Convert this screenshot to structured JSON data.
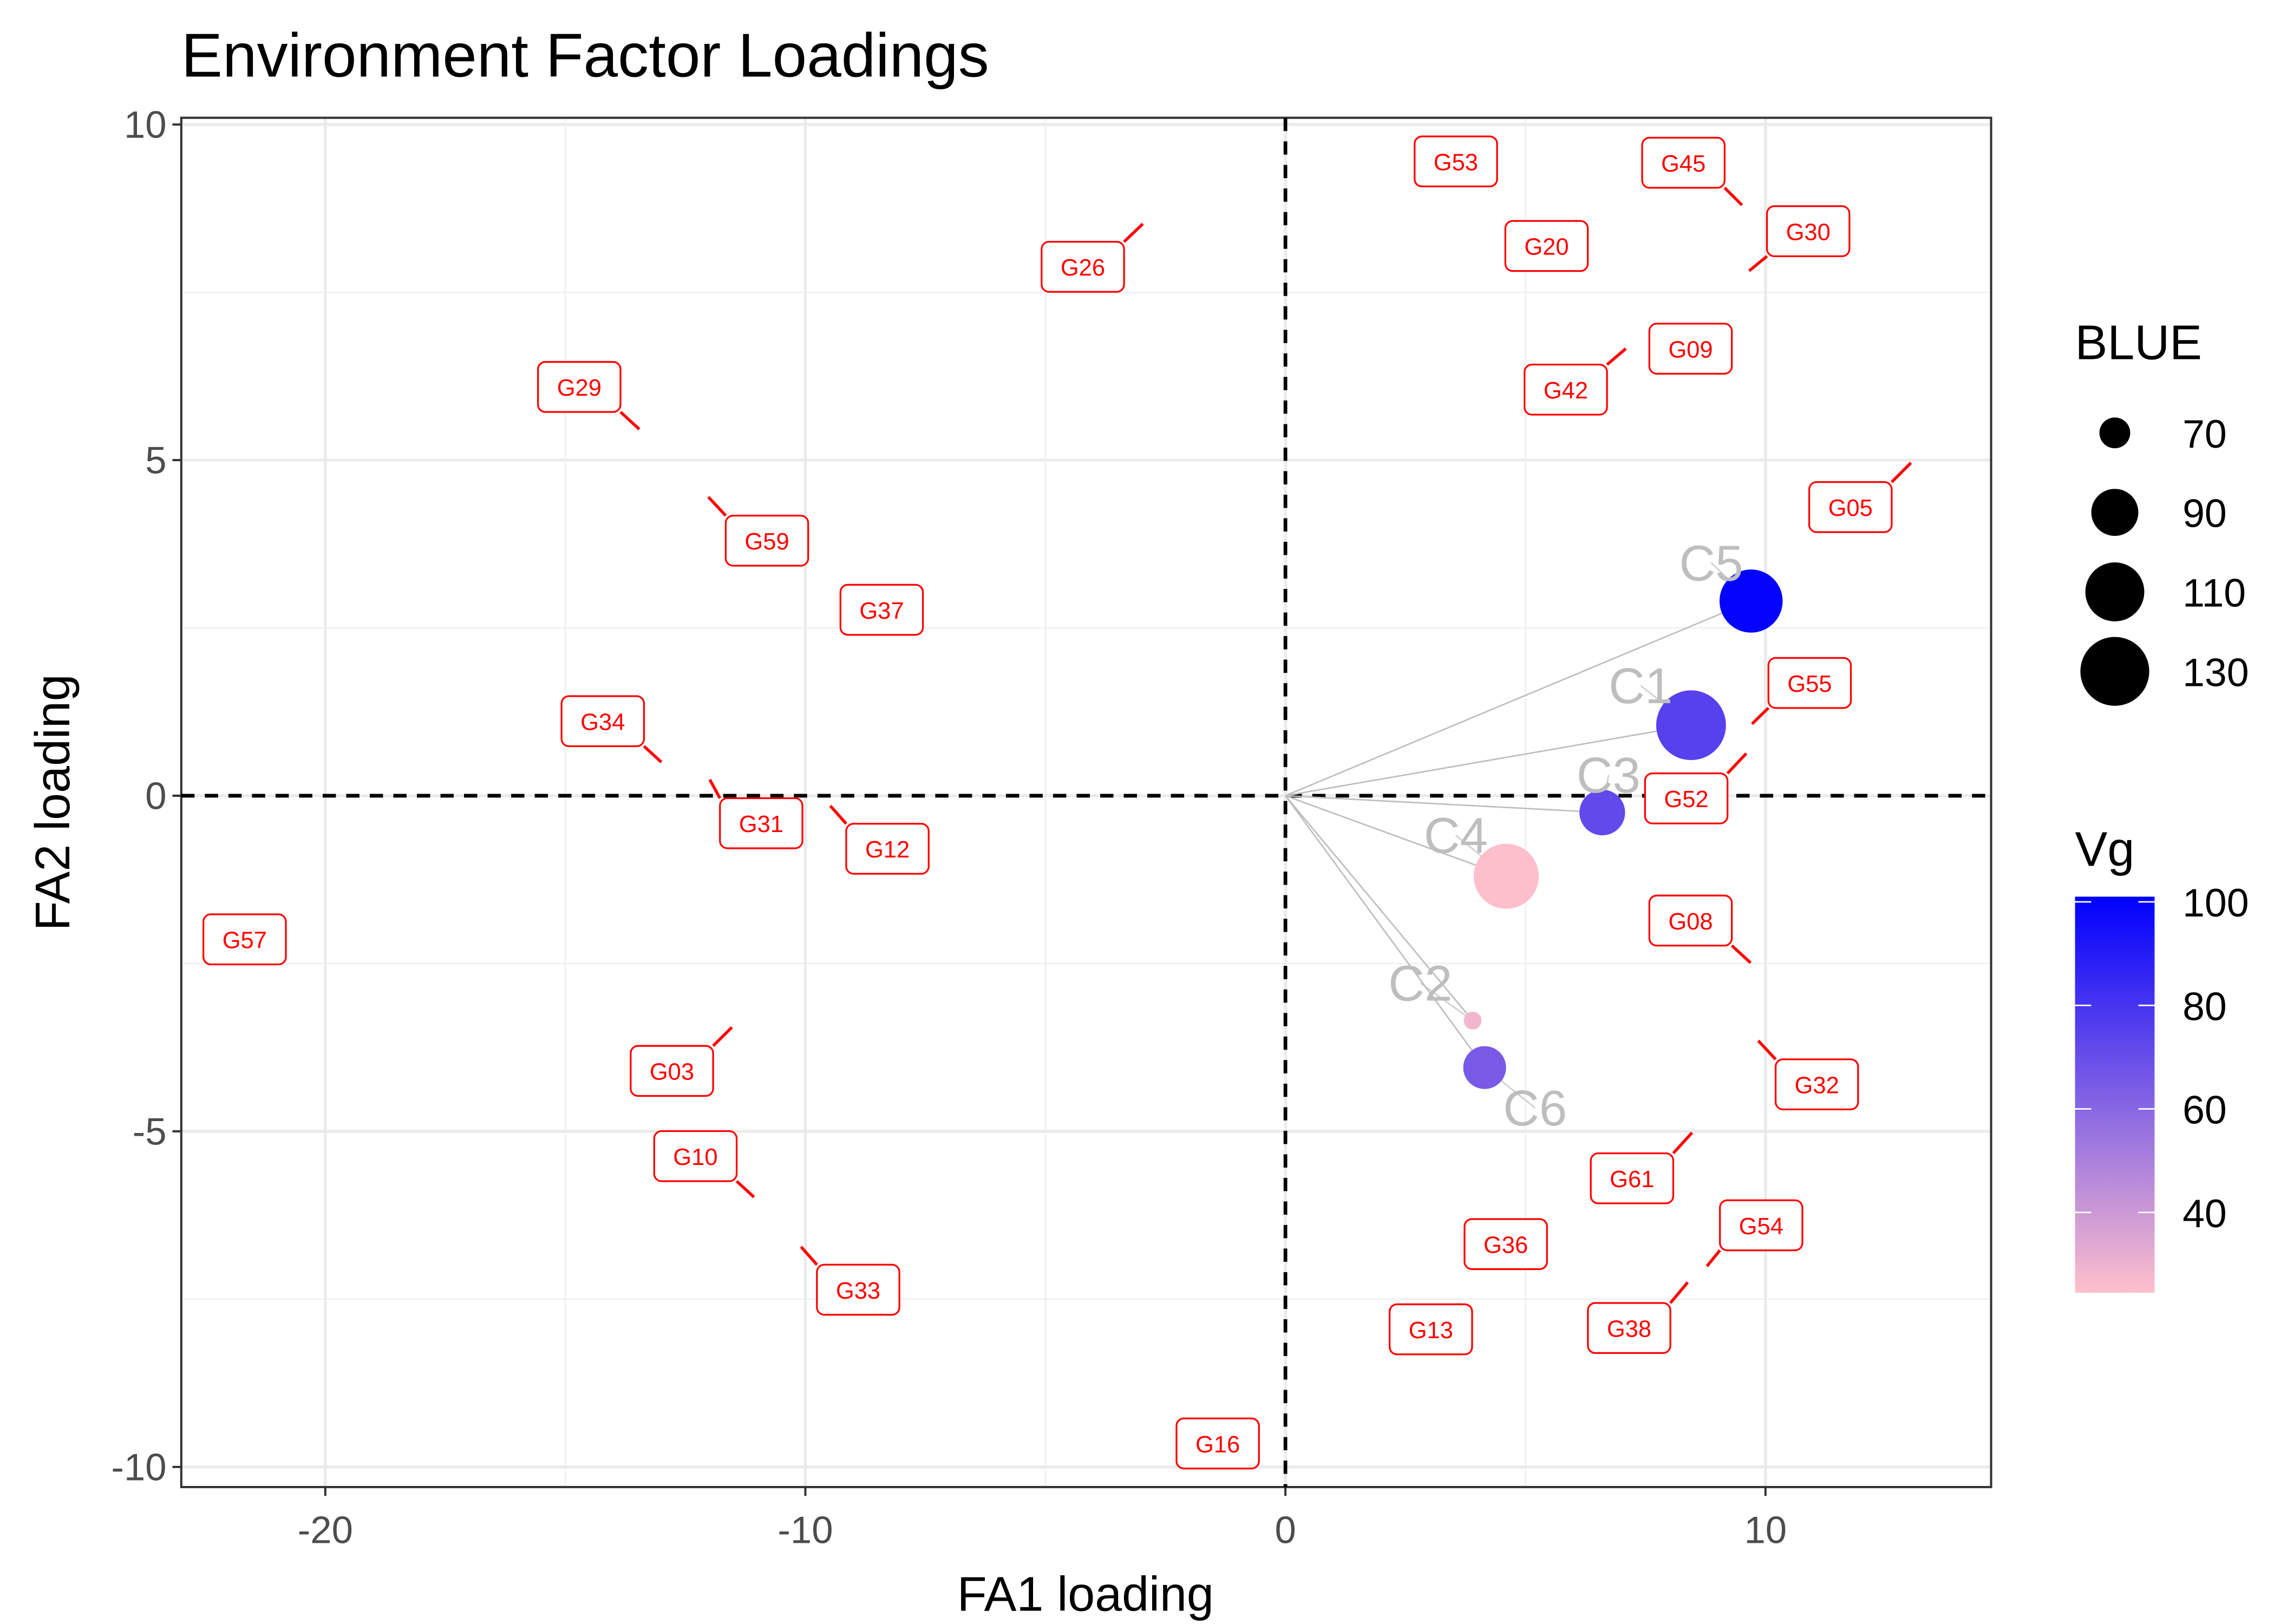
{
  "chart_data": {
    "type": "scatter",
    "title": "Environment Factor Loadings",
    "xlabel": "FA1 loading",
    "ylabel": "FA2 loading",
    "xlim": [
      -23,
      14.7
    ],
    "ylim": [
      -10.3,
      10.1
    ],
    "x_ticks": [
      -20,
      -10,
      0,
      10
    ],
    "y_ticks": [
      10,
      5,
      0,
      -5,
      -10
    ],
    "x_tick_labels": [
      "-20",
      "-10",
      "0",
      "10"
    ],
    "y_tick_labels": [
      "10",
      "5",
      "0",
      "-5",
      "-10"
    ],
    "grid": true,
    "reference_lines": {
      "x": 0,
      "y": 0,
      "style": "dashed"
    },
    "environments": [
      {
        "name": "C5",
        "x": 9.7,
        "y": 2.9,
        "BLUE": 118,
        "Vg": 100,
        "label": [
          8.87,
          3.47
        ]
      },
      {
        "name": "C1",
        "x": 8.45,
        "y": 1.05,
        "BLUE": 132,
        "Vg": 75,
        "label": [
          7.4,
          1.64
        ]
      },
      {
        "name": "C3",
        "x": 6.6,
        "y": -0.25,
        "BLUE": 88,
        "Vg": 72,
        "label": [
          6.73,
          0.31
        ]
      },
      {
        "name": "C4",
        "x": 4.6,
        "y": -1.2,
        "BLUE": 122,
        "Vg": 25,
        "label": [
          3.55,
          -0.59
        ]
      },
      {
        "name": "C2",
        "x": 3.9,
        "y": -3.35,
        "BLUE": 60,
        "Vg": 28,
        "label": [
          2.81,
          -2.79
        ]
      },
      {
        "name": "C6",
        "x": 4.15,
        "y": -4.05,
        "BLUE": 84,
        "Vg": 65,
        "label": [
          5.2,
          -4.65
        ]
      }
    ],
    "genotypes": [
      {
        "name": "G53",
        "x": 3.55,
        "y": 9.45,
        "label": [
          3.55,
          9.45
        ]
      },
      {
        "name": "G45",
        "x": 9.51,
        "y": 8.8,
        "label": [
          8.29,
          9.43
        ]
      },
      {
        "name": "G30",
        "x": 9.66,
        "y": 7.82,
        "label": [
          10.89,
          8.41
        ]
      },
      {
        "name": "G20",
        "x": 5.44,
        "y": 8.19,
        "label": [
          5.44,
          8.19
        ]
      },
      {
        "name": "G26",
        "x": -2.97,
        "y": 8.52,
        "label": [
          -4.22,
          7.88
        ]
      },
      {
        "name": "G09",
        "x": 8.44,
        "y": 6.66,
        "label": [
          8.44,
          6.66
        ]
      },
      {
        "name": "G42",
        "x": 7.09,
        "y": 6.66,
        "label": [
          5.84,
          6.05
        ]
      },
      {
        "name": "G29",
        "x": -13.46,
        "y": 5.46,
        "label": [
          -14.71,
          6.09
        ]
      },
      {
        "name": "G05",
        "x": 13.03,
        "y": 4.96,
        "label": [
          11.77,
          4.3
        ]
      },
      {
        "name": "G59",
        "x": -12.02,
        "y": 4.45,
        "label": [
          -10.8,
          3.8
        ]
      },
      {
        "name": "G37",
        "x": -8.41,
        "y": 2.77,
        "label": [
          -8.41,
          2.77
        ]
      },
      {
        "name": "G55",
        "x": 9.72,
        "y": 1.07,
        "label": [
          10.92,
          1.68
        ]
      },
      {
        "name": "G34",
        "x": -13.0,
        "y": 0.5,
        "label": [
          -14.22,
          1.11
        ]
      },
      {
        "name": "G52",
        "x": 9.6,
        "y": 0.63,
        "label": [
          8.35,
          -0.04
        ]
      },
      {
        "name": "G31",
        "x": -11.99,
        "y": 0.24,
        "label": [
          -10.92,
          -0.41
        ]
      },
      {
        "name": "G12",
        "x": -9.48,
        "y": -0.15,
        "label": [
          -8.29,
          -0.79
        ]
      },
      {
        "name": "G57",
        "x": -21.68,
        "y": -2.14,
        "label": [
          -21.68,
          -2.14
        ]
      },
      {
        "name": "G08",
        "x": 9.69,
        "y": -2.49,
        "label": [
          8.44,
          -1.86
        ]
      },
      {
        "name": "G03",
        "x": -11.53,
        "y": -3.45,
        "label": [
          -12.78,
          -4.1
        ]
      },
      {
        "name": "G32",
        "x": 9.85,
        "y": -3.65,
        "label": [
          11.07,
          -4.3
        ]
      },
      {
        "name": "G10",
        "x": -11.07,
        "y": -5.98,
        "label": [
          -12.29,
          -5.37
        ]
      },
      {
        "name": "G61",
        "x": 8.47,
        "y": -5.02,
        "label": [
          7.22,
          -5.7
        ]
      },
      {
        "name": "G54",
        "x": 8.78,
        "y": -7.01,
        "label": [
          9.91,
          -6.4
        ]
      },
      {
        "name": "G36",
        "x": 4.59,
        "y": -6.68,
        "label": [
          4.59,
          -6.68
        ]
      },
      {
        "name": "G33",
        "x": -10.09,
        "y": -6.72,
        "label": [
          -8.9,
          -7.36
        ]
      },
      {
        "name": "G38",
        "x": 8.38,
        "y": -7.25,
        "label": [
          7.16,
          -7.93
        ]
      },
      {
        "name": "G13",
        "x": 3.03,
        "y": -7.95,
        "label": [
          3.03,
          -7.95
        ]
      },
      {
        "name": "G16",
        "x": -1.41,
        "y": -9.65,
        "label": [
          -1.41,
          -9.65
        ]
      }
    ],
    "legend": {
      "placement": "right",
      "size": {
        "title": "BLUE",
        "breaks": [
          70,
          90,
          110,
          130
        ],
        "labels": [
          "70",
          "90",
          "110",
          "130"
        ]
      },
      "color": {
        "title": "Vg",
        "breaks": [
          40,
          60,
          80,
          100
        ],
        "labels": [
          "40",
          "60",
          "80",
          "100"
        ],
        "range": [
          24.5,
          101
        ],
        "low": "#FFC0CB",
        "high": "#0000FF"
      }
    },
    "colors": {
      "genotype_label": "#FF0000",
      "environment_label": "#BEBEBE",
      "vector": "#BEBEBE"
    }
  }
}
